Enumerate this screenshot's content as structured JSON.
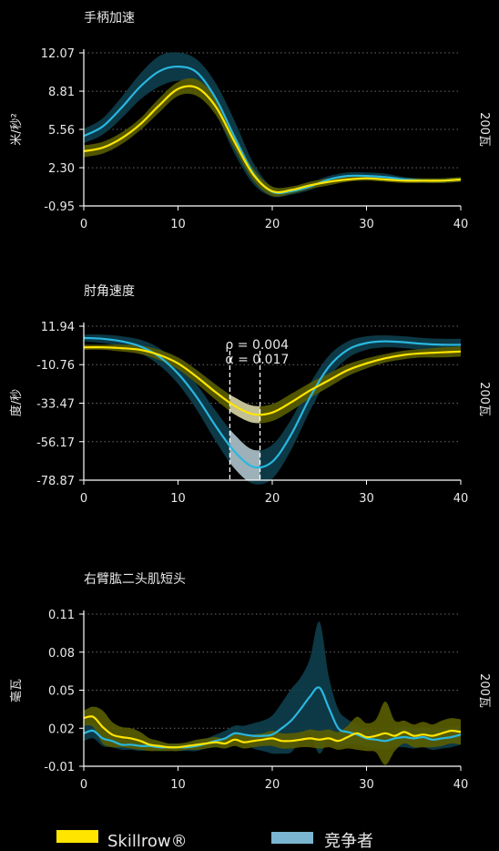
{
  "colors": {
    "skillrow": "#ffe500",
    "skillrow_band": "#5a5d00",
    "competitor": "#29b7e0",
    "competitor_band": "#0e3e4c",
    "axis": "#ffffff",
    "grid": "#6a6a6a",
    "legend_competitor_swatch": "#7ab6d0"
  },
  "legend": {
    "skillrow": "Skillrow®",
    "competitor": "竞争者"
  },
  "chart_data": [
    {
      "id": "handle",
      "type": "line",
      "title": "手柄加速",
      "ylabel": "米/秒²",
      "side_label": "200瓦",
      "xlim": [
        0,
        40
      ],
      "ylim": [
        -0.95,
        12.07
      ],
      "yticks": [
        "12.07",
        "8.81",
        "5.56",
        "2.30",
        "-0.95"
      ],
      "xticks": [
        "0",
        "10",
        "20",
        "30",
        "40"
      ],
      "grid": "horizontal dotted",
      "x": [
        0,
        2,
        4,
        6,
        8,
        10,
        12,
        14,
        16,
        18,
        20,
        22,
        24,
        26,
        28,
        30,
        32,
        34,
        36,
        38,
        40
      ],
      "series": [
        {
          "name": "Skillrow®",
          "values": [
            3.7,
            4.0,
            4.8,
            6.0,
            7.6,
            9.0,
            9.1,
            7.5,
            4.5,
            1.7,
            0.3,
            0.4,
            0.8,
            1.1,
            1.3,
            1.4,
            1.3,
            1.2,
            1.2,
            1.2,
            1.3
          ],
          "band": [
            0.5,
            0.5,
            0.5,
            0.5,
            0.6,
            0.6,
            0.7,
            0.7,
            0.6,
            0.5,
            0.4,
            0.3,
            0.3,
            0.3,
            0.2,
            0.2,
            0.2,
            0.2,
            0.2,
            0.2,
            0.2
          ]
        },
        {
          "name": "竞争者",
          "values": [
            5.0,
            5.8,
            7.4,
            9.2,
            10.5,
            10.9,
            10.4,
            8.2,
            4.9,
            1.8,
            0.25,
            0.3,
            0.7,
            1.3,
            1.6,
            1.6,
            1.5,
            1.3,
            1.2,
            1.2,
            1.3
          ],
          "band": [
            0.6,
            0.7,
            0.9,
            1.1,
            1.3,
            1.2,
            1.1,
            1.3,
            1.4,
            0.9,
            0.4,
            0.3,
            0.3,
            0.3,
            0.3,
            0.3,
            0.3,
            0.2,
            0.2,
            0.2,
            0.2
          ]
        }
      ]
    },
    {
      "id": "elbow",
      "type": "line",
      "title": "肘角速度",
      "ylabel": "度/秒",
      "side_label": "200瓦",
      "xlim": [
        0,
        40
      ],
      "ylim": [
        -78.87,
        11.94
      ],
      "yticks": [
        "11.94",
        "-10.76",
        "-33.47",
        "-56.17",
        "-78.87"
      ],
      "xticks": [
        "0",
        "10",
        "20",
        "30",
        "40"
      ],
      "grid": "horizontal dotted",
      "annotation": {
        "lines": [
          "ρ = 0.004",
          "α = 0.017"
        ],
        "x_range": [
          15.5,
          18.7
        ]
      },
      "x": [
        0,
        2,
        4,
        6,
        8,
        10,
        12,
        14,
        16,
        18,
        20,
        22,
        24,
        26,
        28,
        30,
        32,
        34,
        36,
        38,
        40
      ],
      "series": [
        {
          "name": "Skillrow®",
          "values": [
            -0.5,
            -0.5,
            -1,
            -2,
            -5,
            -10,
            -18,
            -27,
            -35,
            -40,
            -39,
            -33,
            -26,
            -20,
            -14,
            -10,
            -7,
            -5,
            -4,
            -3.5,
            -3
          ],
          "band": [
            1.5,
            1.5,
            2,
            2.5,
            3,
            3.5,
            4,
            4.5,
            5,
            5,
            5,
            5,
            4.5,
            4,
            3.5,
            3,
            2.5,
            2.5,
            2.5,
            3,
            3
          ]
        },
        {
          "name": "竞争者",
          "values": [
            5,
            4.5,
            3,
            0,
            -6,
            -16,
            -30,
            -47,
            -62,
            -71,
            -68,
            -52,
            -30,
            -12,
            -2,
            2,
            3,
            2.5,
            1.5,
            1,
            1
          ],
          "band": [
            2,
            2.5,
            3,
            4,
            5,
            6,
            7.5,
            9,
            10,
            10,
            10,
            9,
            8,
            6.5,
            5,
            4,
            3.5,
            3.5,
            3.5,
            3.5,
            3.5
          ]
        }
      ]
    },
    {
      "id": "biceps",
      "type": "line",
      "title": "右臂肱二头肌短头",
      "ylabel": "毫瓦",
      "side_label": "200瓦",
      "xlim": [
        0,
        40
      ],
      "ylim": [
        -0.01,
        0.11
      ],
      "yticks": [
        "0.11",
        "0.08",
        "0.05",
        "0.02",
        "-0.01"
      ],
      "xticks": [
        "0",
        "10",
        "20",
        "30",
        "40"
      ],
      "grid": "horizontal dotted",
      "x": [
        0,
        1,
        2,
        3,
        4,
        5,
        6,
        7,
        8,
        9,
        10,
        11,
        12,
        13,
        14,
        15,
        16,
        17,
        18,
        19,
        20,
        21,
        22,
        23,
        24,
        25,
        26,
        27,
        28,
        29,
        30,
        31,
        32,
        33,
        34,
        35,
        36,
        37,
        38,
        39,
        40
      ],
      "series": [
        {
          "name": "Skillrow®",
          "values": [
            0.028,
            0.029,
            0.021,
            0.015,
            0.013,
            0.012,
            0.01,
            0.007,
            0.006,
            0.005,
            0.005,
            0.006,
            0.007,
            0.008,
            0.009,
            0.008,
            0.011,
            0.009,
            0.01,
            0.011,
            0.012,
            0.01,
            0.01,
            0.011,
            0.012,
            0.011,
            0.012,
            0.01,
            0.013,
            0.016,
            0.013,
            0.014,
            0.016,
            0.014,
            0.017,
            0.014,
            0.015,
            0.014,
            0.016,
            0.018,
            0.017
          ],
          "band": [
            0.006,
            0.008,
            0.013,
            0.01,
            0.008,
            0.008,
            0.007,
            0.005,
            0.004,
            0.003,
            0.003,
            0.003,
            0.004,
            0.004,
            0.004,
            0.004,
            0.005,
            0.005,
            0.005,
            0.005,
            0.006,
            0.006,
            0.006,
            0.006,
            0.007,
            0.007,
            0.007,
            0.007,
            0.009,
            0.013,
            0.011,
            0.013,
            0.025,
            0.012,
            0.009,
            0.009,
            0.01,
            0.009,
            0.01,
            0.01,
            0.01
          ]
        },
        {
          "name": "竞争者",
          "values": [
            0.016,
            0.018,
            0.012,
            0.01,
            0.007,
            0.007,
            0.006,
            0.006,
            0.005,
            0.005,
            0.005,
            0.005,
            0.006,
            0.008,
            0.01,
            0.012,
            0.016,
            0.015,
            0.014,
            0.014,
            0.015,
            0.02,
            0.026,
            0.035,
            0.045,
            0.052,
            0.036,
            0.02,
            0.017,
            0.015,
            0.012,
            0.011,
            0.01,
            0.012,
            0.013,
            0.012,
            0.013,
            0.011,
            0.012,
            0.013,
            0.015
          ],
          "band": [
            0.006,
            0.006,
            0.006,
            0.005,
            0.004,
            0.004,
            0.004,
            0.003,
            0.003,
            0.003,
            0.003,
            0.003,
            0.004,
            0.004,
            0.005,
            0.006,
            0.006,
            0.007,
            0.01,
            0.012,
            0.015,
            0.02,
            0.025,
            0.025,
            0.03,
            0.052,
            0.025,
            0.015,
            0.01,
            0.008,
            0.007,
            0.007,
            0.007,
            0.007,
            0.008,
            0.008,
            0.008,
            0.008,
            0.008,
            0.008,
            0.008
          ]
        }
      ]
    }
  ]
}
